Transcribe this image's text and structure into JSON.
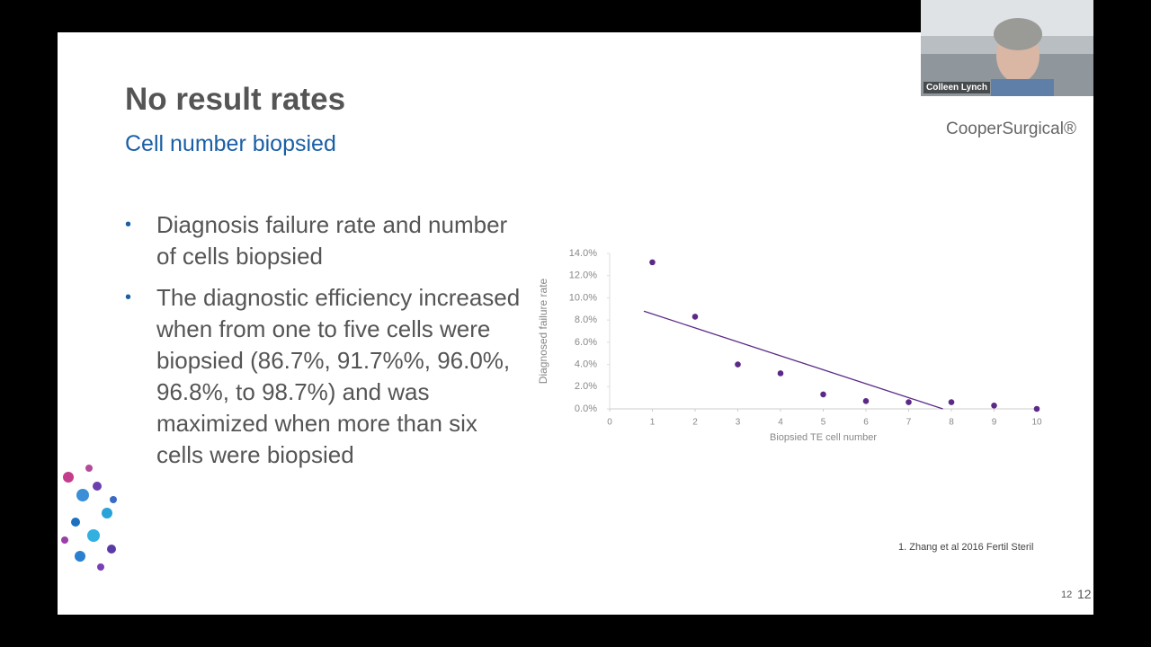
{
  "slide": {
    "title": "No result rates",
    "subtitle": "Cell number biopsied",
    "bullets": [
      "Diagnosis failure rate and number of cells biopsied",
      "The diagnostic efficiency increased when from one to five cells were biopsied (86.7%, 91.7%%, 96.0%, 96.8%, to 98.7%) and was maximized when more than six cells were biopsied"
    ],
    "logo": "CooperSurgical®",
    "footnote": "1. Zhang et al 2016 Fertil Steril",
    "page_number": "12",
    "slide_number": "12"
  },
  "webcam": {
    "name": "Colleen Lynch"
  },
  "chart_data": {
    "type": "scatter",
    "x_label": "Biopsied TE cell number",
    "y_label": "Diagnosed failure rate",
    "x": [
      1,
      2,
      3,
      4,
      5,
      6,
      7,
      8,
      9,
      10
    ],
    "values": [
      13.2,
      8.3,
      4.0,
      3.2,
      1.3,
      0.7,
      0.6,
      0.6,
      0.3,
      0.0
    ],
    "color": "#5b2a86",
    "trendline": {
      "x": [
        0.8,
        7.8
      ],
      "values": [
        8.8,
        0
      ],
      "color": "#5b2a86"
    },
    "xlim": [
      0,
      10
    ],
    "xticks": [
      0,
      1,
      2,
      3,
      4,
      5,
      6,
      7,
      8,
      9,
      10
    ],
    "ylim": [
      0,
      14
    ],
    "yticks": [
      {
        "value": 0,
        "label": "0.0%"
      },
      {
        "value": 2,
        "label": "2.0%"
      },
      {
        "value": 4,
        "label": "4.0%"
      },
      {
        "value": 6,
        "label": "6.0%"
      },
      {
        "value": 8,
        "label": "8.0%"
      },
      {
        "value": 10,
        "label": "10.0%"
      },
      {
        "value": 12,
        "label": "12.0%"
      },
      {
        "value": 14,
        "label": "14.0%"
      }
    ]
  }
}
